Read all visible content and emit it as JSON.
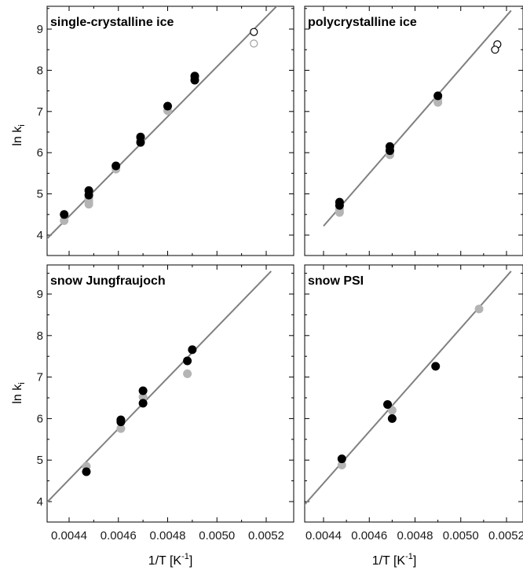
{
  "chart_data": {
    "type": "scatter",
    "layout": "2x2 grid, shared x axis per column, shared y axis per row",
    "xlabel": "1/T [K",
    "xlabel_sup": "-1",
    "xlabel_end": "]",
    "ylabel": "ln k",
    "ylabel_sub": "i",
    "xlim": [
      0.0043,
      0.00525
    ],
    "ylim": [
      3.5,
      9.6
    ],
    "x_ticks": [
      {
        "value": 0.0044,
        "label": "0.0044"
      },
      {
        "value": 0.0046,
        "label": "0.0046"
      },
      {
        "value": 0.0048,
        "label": "0.0048"
      },
      {
        "value": 0.005,
        "label": "0.0050"
      },
      {
        "value": 0.0052,
        "label": "0.0052"
      }
    ],
    "y_ticks": [
      {
        "value": 4,
        "label": "4"
      },
      {
        "value": 5,
        "label": "5"
      },
      {
        "value": 6,
        "label": "6"
      },
      {
        "value": 7,
        "label": "7"
      },
      {
        "value": 8,
        "label": "8"
      },
      {
        "value": 9,
        "label": "9"
      }
    ],
    "colors": {
      "black": "#000000",
      "grey": "#b4b4b4",
      "line": "#808080",
      "open_black": "#000000",
      "open_grey": "#a0a0a0"
    },
    "panels": [
      {
        "title": "single-crystalline ice",
        "fit_line": {
          "x": [
            0.0043,
            0.00525
          ],
          "y": [
            3.85,
            9.6
          ]
        },
        "black": {
          "x": [
            0.00438,
            0.00448,
            0.00448,
            0.00459,
            0.00469,
            0.00469,
            0.0048,
            0.00491,
            0.00491
          ],
          "y": [
            4.5,
            5.08,
            4.97,
            5.68,
            6.38,
            6.25,
            7.13,
            7.86,
            7.76
          ]
        },
        "grey": {
          "x": [
            0.00438,
            0.00448,
            0.00448,
            0.00448,
            0.00459,
            0.00469,
            0.0048,
            0.00491
          ],
          "y": [
            4.35,
            4.9,
            4.82,
            4.75,
            5.6,
            6.32,
            7.02,
            7.8
          ]
        },
        "open_black": {
          "x": [
            0.00515
          ],
          "y": [
            8.93
          ]
        },
        "open_grey": {
          "x": [
            0.00515
          ],
          "y": [
            8.65
          ]
        }
      },
      {
        "title": "polycrystalline ice",
        "fit_line": {
          "x": [
            0.0044,
            0.00522
          ],
          "y": [
            4.22,
            9.45
          ]
        },
        "black": {
          "x": [
            0.00447,
            0.00447,
            0.00469,
            0.00469,
            0.0049
          ],
          "y": [
            4.8,
            4.72,
            6.15,
            6.05,
            7.38
          ]
        },
        "grey": {
          "x": [
            0.00447,
            0.00447,
            0.00469,
            0.00469,
            0.0049,
            0.0049
          ],
          "y": [
            4.62,
            4.55,
            6.05,
            5.95,
            7.3,
            7.22
          ]
        },
        "open_black": {
          "x": [
            0.00516,
            0.00515
          ],
          "y": [
            8.63,
            8.5
          ]
        },
        "open_grey": {
          "x": [],
          "y": []
        }
      },
      {
        "title": "snow Jungfraujoch",
        "fit_line": {
          "x": [
            0.0043,
            0.00522
          ],
          "y": [
            3.92,
            9.55
          ]
        },
        "black": {
          "x": [
            0.00447,
            0.00461,
            0.00461,
            0.0047,
            0.0047,
            0.00488,
            0.0049
          ],
          "y": [
            4.72,
            5.97,
            5.92,
            6.67,
            6.37,
            7.39,
            7.66
          ]
        },
        "grey": {
          "x": [
            0.00447,
            0.00461,
            0.0047,
            0.00488
          ],
          "y": [
            4.85,
            5.76,
            6.52,
            7.08
          ]
        },
        "open_black": {
          "x": [],
          "y": []
        },
        "open_grey": {
          "x": [],
          "y": []
        }
      },
      {
        "title": "snow PSI",
        "fit_line": {
          "x": [
            0.0043,
            0.00522
          ],
          "y": [
            3.82,
            9.55
          ]
        },
        "black": {
          "x": [
            0.00448,
            0.00468,
            0.0047,
            0.00489
          ],
          "y": [
            5.03,
            6.34,
            6.0,
            7.26
          ]
        },
        "grey": {
          "x": [
            0.00448,
            0.0047,
            0.00508
          ],
          "y": [
            4.88,
            6.2,
            8.64
          ]
        },
        "open_black": {
          "x": [],
          "y": []
        },
        "open_grey": {
          "x": [],
          "y": []
        }
      }
    ]
  }
}
